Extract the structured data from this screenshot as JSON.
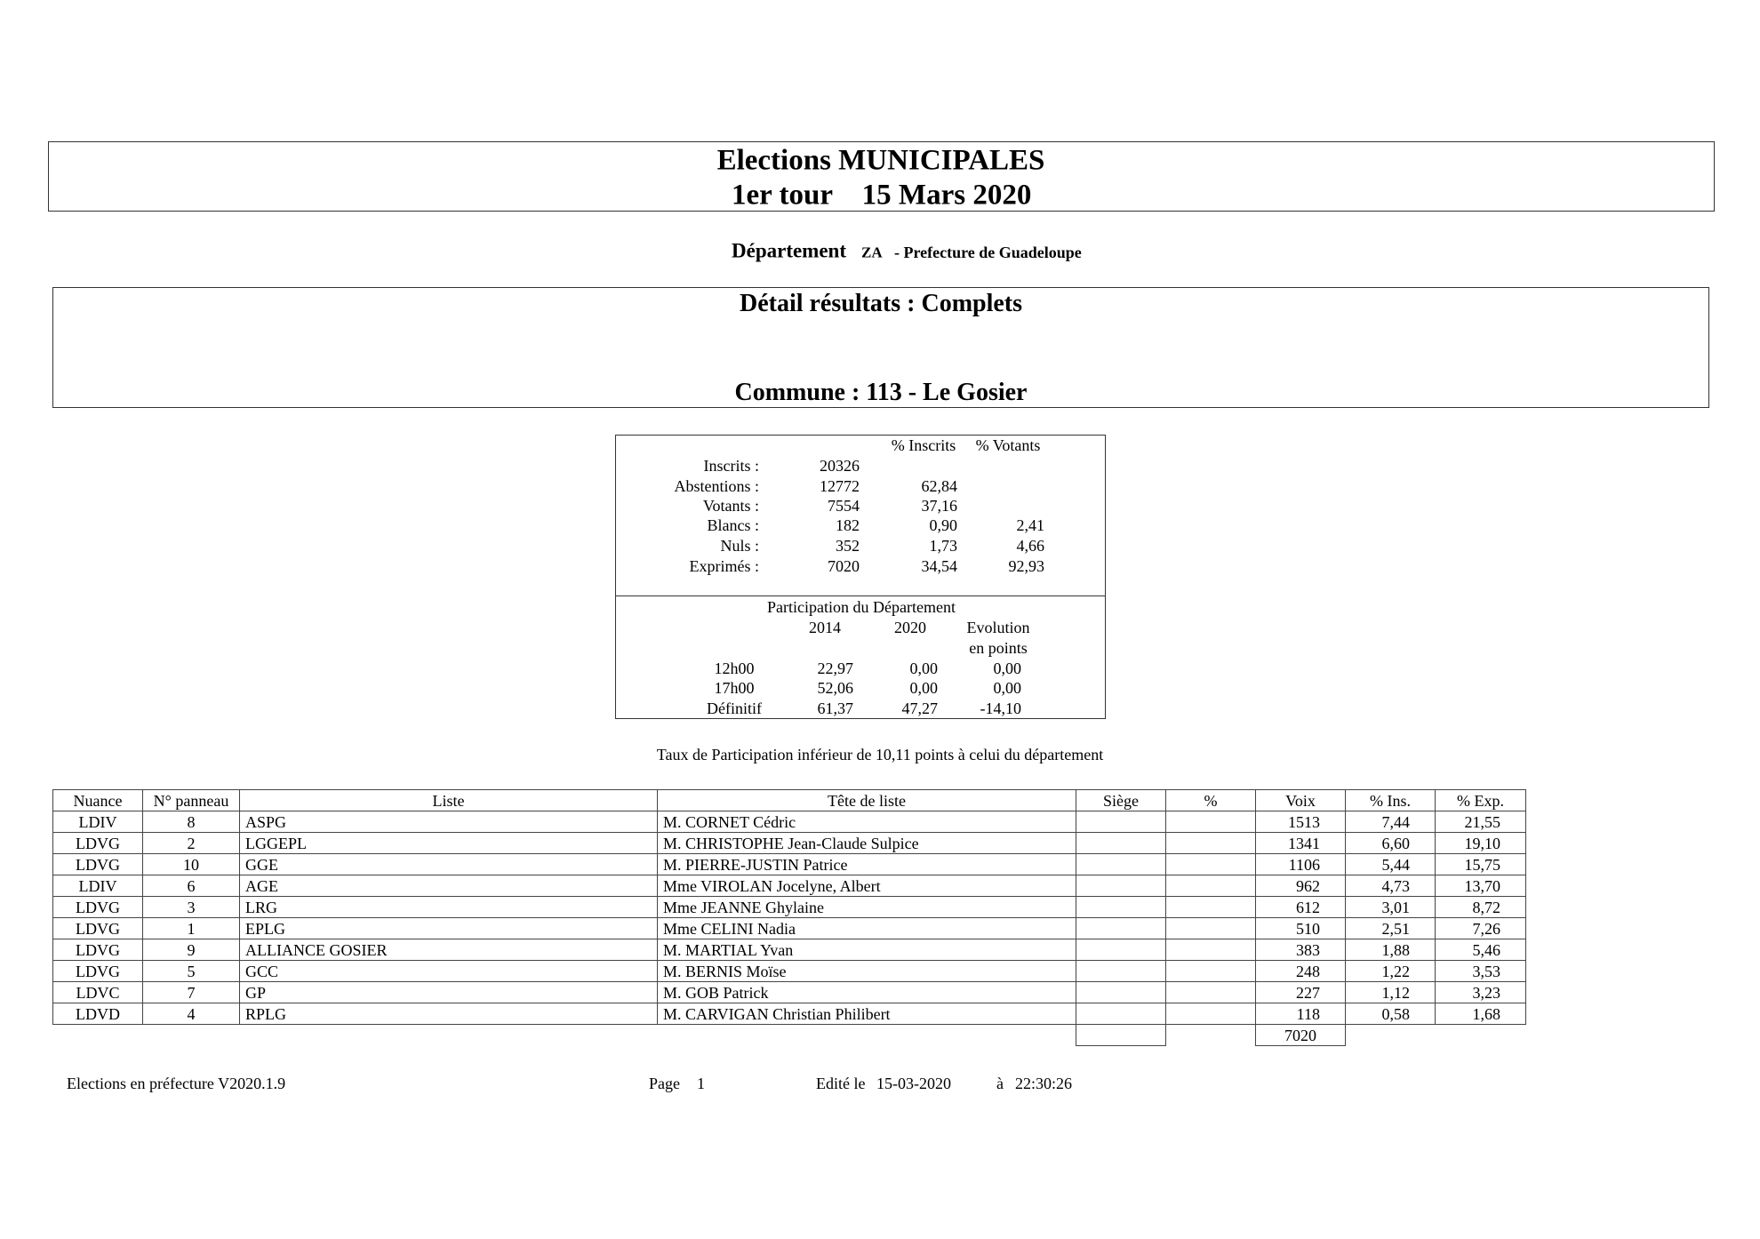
{
  "header": {
    "title": "Elections MUNICIPALES",
    "round": "1er tour",
    "date": "15 Mars 2020"
  },
  "departement": {
    "label": "Département",
    "code": "ZA",
    "name": "- Prefecture de Guadeloupe"
  },
  "detail": {
    "title": "Détail résultats : Complets",
    "commune": "Commune : 113 - Le Gosier"
  },
  "stats": {
    "columns": [
      "% Inscrits",
      "% Votants"
    ],
    "rows": [
      [
        "Inscrits :",
        "20326"
      ],
      [
        "Abstentions :",
        "12772",
        "62,84"
      ],
      [
        "Votants :",
        "7554",
        "37,16"
      ],
      [
        "Blancs :",
        "182",
        "0,90",
        "2,41"
      ],
      [
        "Nuls :",
        "352",
        "1,73",
        "4,66"
      ],
      [
        "Exprimés :",
        "7020",
        "34,54",
        "92,93"
      ]
    ]
  },
  "participation": {
    "title": "Participation du Département",
    "columns": [
      "2014",
      "2020",
      "Evolution"
    ],
    "evolution_unit": "en points",
    "rows": [
      [
        "12h00",
        "22,97",
        "0,00",
        "0,00"
      ],
      [
        "17h00",
        "52,06",
        "0,00",
        "0,00"
      ],
      [
        "Définitif",
        "61,37",
        "47,27",
        "-14,10"
      ]
    ]
  },
  "note": "Taux de Participation inférieur de 10,11 points à celui du département",
  "results": {
    "columns": [
      "Nuance",
      "N° panneau",
      "Liste",
      "Tête de liste",
      "Siège",
      "%",
      "Voix",
      "% Ins.",
      "% Exp."
    ],
    "rows": [
      {
        "nuance": "LDIV",
        "panneau": "8",
        "liste": "ASPG",
        "tete": "M. CORNET Cédric",
        "voix": "1513",
        "ins": "7,44",
        "exp": "21,55"
      },
      {
        "nuance": "LDVG",
        "panneau": "2",
        "liste": "LGGEPL",
        "tete": "M. CHRISTOPHE Jean-Claude Sulpice",
        "voix": "1341",
        "ins": "6,60",
        "exp": "19,10"
      },
      {
        "nuance": "LDVG",
        "panneau": "10",
        "liste": "GGE",
        "tete": "M. PIERRE-JUSTIN Patrice",
        "voix": "1106",
        "ins": "5,44",
        "exp": "15,75"
      },
      {
        "nuance": "LDIV",
        "panneau": "6",
        "liste": "AGE",
        "tete": "Mme VIROLAN Jocelyne, Albert",
        "voix": "962",
        "ins": "4,73",
        "exp": "13,70"
      },
      {
        "nuance": "LDVG",
        "panneau": "3",
        "liste": "LRG",
        "tete": "Mme JEANNE Ghylaine",
        "voix": "612",
        "ins": "3,01",
        "exp": "8,72"
      },
      {
        "nuance": "LDVG",
        "panneau": "1",
        "liste": "EPLG",
        "tete": "Mme CELINI Nadia",
        "voix": "510",
        "ins": "2,51",
        "exp": "7,26"
      },
      {
        "nuance": "LDVG",
        "panneau": "9",
        "liste": "ALLIANCE GOSIER",
        "tete": "M. MARTIAL Yvan",
        "voix": "383",
        "ins": "1,88",
        "exp": "5,46"
      },
      {
        "nuance": "LDVG",
        "panneau": "5",
        "liste": "GCC",
        "tete": "M. BERNIS Moïse",
        "voix": "248",
        "ins": "1,22",
        "exp": "3,53"
      },
      {
        "nuance": "LDVC",
        "panneau": "7",
        "liste": "GP",
        "tete": "M. GOB Patrick",
        "voix": "227",
        "ins": "1,12",
        "exp": "3,23"
      },
      {
        "nuance": "LDVD",
        "panneau": "4",
        "liste": "RPLG",
        "tete": "M. CARVIGAN Christian Philibert",
        "voix": "118",
        "ins": "0,58",
        "exp": "1,68"
      }
    ],
    "total_voix": "7020"
  },
  "footer": {
    "software": "Elections en préfecture V2020.1.9",
    "page_label": "Page",
    "page": "1",
    "edited_label": "Edité le",
    "date": "15-03-2020",
    "at_label": "à",
    "time": "22:30:26"
  }
}
